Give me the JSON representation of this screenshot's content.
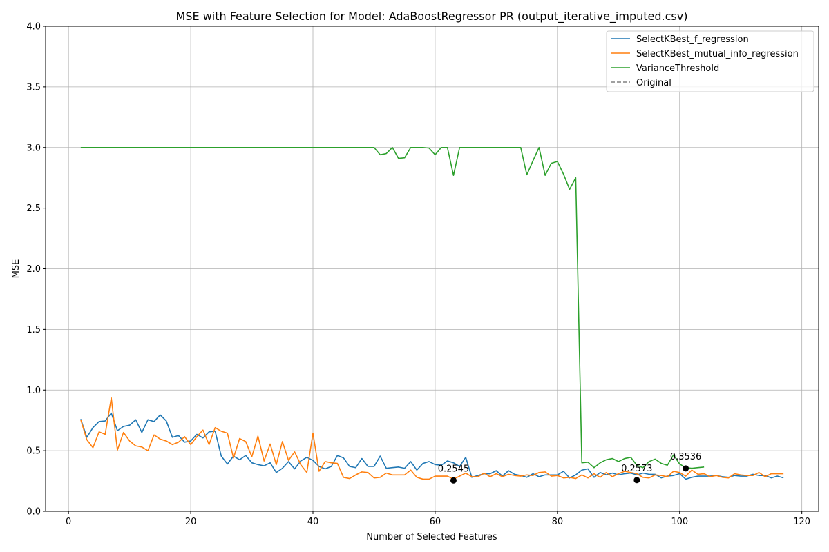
{
  "chart_data": {
    "type": "line",
    "title": "MSE with Feature Selection for Model: AdaBoostRegressor PR (output_iterative_imputed.csv)",
    "xlabel": "Number of Selected Features",
    "ylabel": "MSE",
    "xlim": [
      -3.75,
      122.75
    ],
    "ylim": [
      0.0,
      4.0
    ],
    "xticks": [
      0,
      20,
      40,
      60,
      80,
      100,
      120
    ],
    "yticks": [
      0.0,
      0.5,
      1.0,
      1.5,
      2.0,
      2.5,
      3.0,
      3.5,
      4.0
    ],
    "ytick_labels": [
      "0.0",
      "0.5",
      "1.0",
      "1.5",
      "2.0",
      "2.5",
      "3.0",
      "3.5",
      "4.0"
    ],
    "grid": true,
    "legend_position": "top-right",
    "series": [
      {
        "name": "SelectKBest_f_regression",
        "color": "#1f77b4",
        "style": "solid",
        "x": [
          2,
          3,
          4,
          5,
          6,
          7,
          8,
          9,
          10,
          11,
          12,
          13,
          14,
          15,
          16,
          17,
          18,
          19,
          20,
          21,
          22,
          23,
          24,
          25,
          26,
          27,
          28,
          29,
          30,
          31,
          32,
          33,
          34,
          35,
          36,
          37,
          38,
          39,
          40,
          41,
          42,
          43,
          44,
          45,
          46,
          47,
          48,
          49,
          50,
          51,
          52,
          53,
          54,
          55,
          56,
          57,
          58,
          59,
          60,
          61,
          62,
          63,
          64,
          65,
          66,
          67,
          68,
          69,
          70,
          71,
          72,
          73,
          74,
          75,
          76,
          77,
          78,
          79,
          80,
          81,
          82,
          83,
          84,
          85,
          86,
          87,
          88,
          89,
          90,
          91,
          92,
          93,
          94,
          95,
          96,
          97,
          98,
          99,
          100,
          101,
          102,
          103,
          104,
          105,
          106,
          107,
          108,
          109,
          110,
          111,
          112,
          113,
          114,
          115,
          116,
          117
        ],
        "y": [
          0.76,
          0.61,
          0.69,
          0.74,
          0.745,
          0.81,
          0.665,
          0.7,
          0.71,
          0.755,
          0.65,
          0.755,
          0.74,
          0.795,
          0.745,
          0.61,
          0.625,
          0.57,
          0.58,
          0.635,
          0.605,
          0.655,
          0.66,
          0.455,
          0.39,
          0.455,
          0.425,
          0.46,
          0.4,
          0.385,
          0.375,
          0.4,
          0.32,
          0.355,
          0.41,
          0.35,
          0.415,
          0.445,
          0.42,
          0.37,
          0.35,
          0.37,
          0.46,
          0.44,
          0.37,
          0.36,
          0.435,
          0.37,
          0.37,
          0.455,
          0.355,
          0.36,
          0.365,
          0.355,
          0.41,
          0.34,
          0.395,
          0.41,
          0.385,
          0.38,
          0.415,
          0.4,
          0.37,
          0.445,
          0.28,
          0.295,
          0.31,
          0.31,
          0.335,
          0.29,
          0.335,
          0.305,
          0.295,
          0.28,
          0.31,
          0.285,
          0.3,
          0.3,
          0.3,
          0.33,
          0.275,
          0.3,
          0.34,
          0.35,
          0.28,
          0.32,
          0.3,
          0.315,
          0.3,
          0.31,
          0.315,
          0.3,
          0.315,
          0.305,
          0.305,
          0.275,
          0.29,
          0.295,
          0.31,
          0.265,
          0.28,
          0.29,
          0.29,
          0.29,
          0.295,
          0.285,
          0.28,
          0.295,
          0.29,
          0.29,
          0.305,
          0.295,
          0.295,
          0.275,
          0.29,
          0.275
        ]
      },
      {
        "name": "SelectKBest_mutual_info_regression",
        "color": "#ff7f0e",
        "style": "solid",
        "x": [
          2,
          3,
          4,
          5,
          6,
          7,
          8,
          9,
          10,
          11,
          12,
          13,
          14,
          15,
          16,
          17,
          18,
          19,
          20,
          21,
          22,
          23,
          24,
          25,
          26,
          27,
          28,
          29,
          30,
          31,
          32,
          33,
          34,
          35,
          36,
          37,
          38,
          39,
          40,
          41,
          42,
          43,
          44,
          45,
          46,
          47,
          48,
          49,
          50,
          51,
          52,
          53,
          54,
          55,
          56,
          57,
          58,
          59,
          60,
          61,
          62,
          63,
          64,
          65,
          66,
          67,
          68,
          69,
          70,
          71,
          72,
          73,
          74,
          75,
          76,
          77,
          78,
          79,
          80,
          81,
          82,
          83,
          84,
          85,
          86,
          87,
          88,
          89,
          90,
          91,
          92,
          93,
          94,
          95,
          96,
          97,
          98,
          99,
          100,
          101,
          102,
          103,
          104,
          105,
          106,
          107,
          108,
          109,
          110,
          111,
          112,
          113,
          114,
          115,
          116,
          117
        ],
        "y": [
          0.755,
          0.59,
          0.525,
          0.655,
          0.635,
          0.935,
          0.505,
          0.65,
          0.58,
          0.54,
          0.53,
          0.5,
          0.63,
          0.595,
          0.58,
          0.55,
          0.57,
          0.615,
          0.55,
          0.615,
          0.67,
          0.55,
          0.69,
          0.66,
          0.645,
          0.44,
          0.6,
          0.575,
          0.45,
          0.62,
          0.415,
          0.555,
          0.385,
          0.575,
          0.42,
          0.49,
          0.385,
          0.32,
          0.645,
          0.33,
          0.41,
          0.4,
          0.395,
          0.28,
          0.27,
          0.3,
          0.325,
          0.32,
          0.275,
          0.28,
          0.315,
          0.3,
          0.3,
          0.3,
          0.34,
          0.28,
          0.265,
          0.265,
          0.29,
          0.29,
          0.29,
          0.265,
          0.29,
          0.315,
          0.285,
          0.285,
          0.315,
          0.285,
          0.31,
          0.285,
          0.305,
          0.295,
          0.29,
          0.3,
          0.295,
          0.32,
          0.325,
          0.29,
          0.295,
          0.275,
          0.28,
          0.27,
          0.3,
          0.275,
          0.31,
          0.28,
          0.32,
          0.285,
          0.31,
          0.33,
          0.32,
          0.31,
          0.28,
          0.275,
          0.3,
          0.295,
          0.285,
          0.33,
          0.32,
          0.29,
          0.34,
          0.305,
          0.31,
          0.285,
          0.295,
          0.28,
          0.275,
          0.31,
          0.3,
          0.295,
          0.295,
          0.32,
          0.285,
          0.31,
          0.31,
          0.31
        ]
      },
      {
        "name": "VarianceThreshold",
        "color": "#2ca02c",
        "style": "solid",
        "x": [
          2,
          3,
          4,
          5,
          6,
          7,
          8,
          9,
          10,
          11,
          12,
          13,
          14,
          15,
          16,
          17,
          18,
          19,
          20,
          21,
          22,
          23,
          24,
          25,
          26,
          27,
          28,
          29,
          30,
          31,
          32,
          33,
          34,
          35,
          36,
          37,
          38,
          39,
          40,
          41,
          42,
          43,
          44,
          45,
          46,
          47,
          48,
          49,
          50,
          51,
          52,
          53,
          54,
          55,
          56,
          57,
          58,
          59,
          60,
          61,
          62,
          63,
          64,
          65,
          66,
          67,
          68,
          69,
          70,
          71,
          72,
          73,
          74,
          75,
          76,
          77,
          78,
          79,
          80,
          81,
          82,
          83,
          84,
          85,
          86,
          87,
          88,
          89,
          90,
          91,
          92,
          93,
          94,
          95,
          96,
          97,
          98,
          99,
          100,
          101,
          102,
          103,
          104
        ],
        "y": [
          3.0,
          3.0,
          3.0,
          3.0,
          3.0,
          3.0,
          3.0,
          3.0,
          3.0,
          3.0,
          3.0,
          3.0,
          3.0,
          3.0,
          3.0,
          3.0,
          3.0,
          3.0,
          3.0,
          3.0,
          3.0,
          3.0,
          3.0,
          3.0,
          3.0,
          3.0,
          3.0,
          3.0,
          3.0,
          3.0,
          3.0,
          3.0,
          3.0,
          3.0,
          3.0,
          3.0,
          3.0,
          3.0,
          3.0,
          3.0,
          3.0,
          3.0,
          3.0,
          3.0,
          3.0,
          3.0,
          3.0,
          3.0,
          3.0,
          2.94,
          2.95,
          3.0,
          2.91,
          2.915,
          3.0,
          3.0,
          3.0,
          2.995,
          2.94,
          3.0,
          3.0,
          2.77,
          3.0,
          3.0,
          3.0,
          3.0,
          3.0,
          3.0,
          3.0,
          3.0,
          3.0,
          3.0,
          3.0,
          2.775,
          2.89,
          3.0,
          2.77,
          2.87,
          2.885,
          2.78,
          2.655,
          2.75,
          0.4,
          0.405,
          0.36,
          0.4,
          0.425,
          0.435,
          0.41,
          0.435,
          0.445,
          0.38,
          0.36,
          0.41,
          0.43,
          0.395,
          0.38,
          0.465,
          0.39,
          0.36,
          0.355,
          0.36,
          0.365
        ]
      },
      {
        "name": "Original",
        "color": "#808080",
        "style": "dashed",
        "x": [],
        "y": []
      }
    ],
    "annotations": [
      {
        "x": 63,
        "y": 0.2545,
        "label": "0.2545"
      },
      {
        "x": 93,
        "y": 0.2573,
        "label": "0.2573"
      },
      {
        "x": 101,
        "y": 0.3536,
        "label": "0.3536"
      }
    ]
  }
}
